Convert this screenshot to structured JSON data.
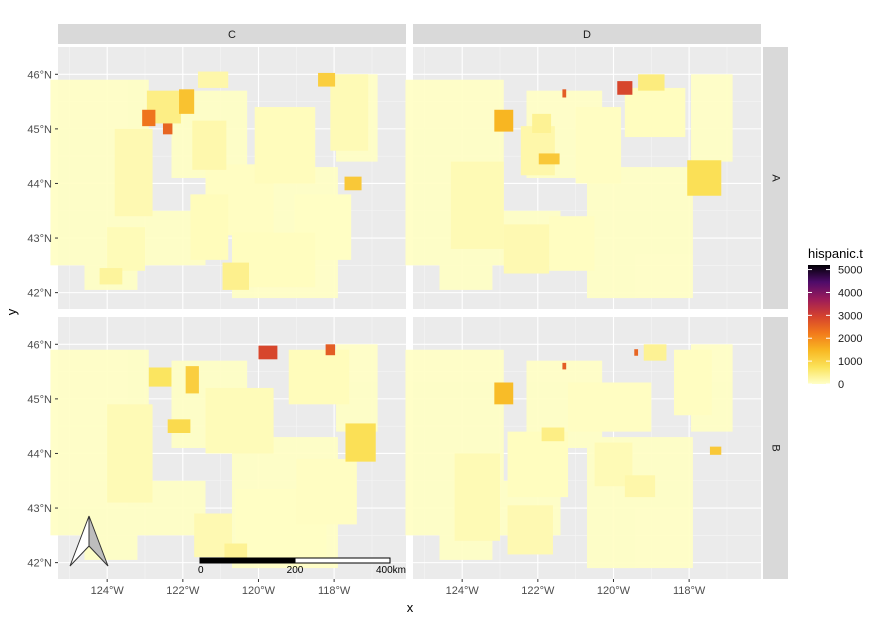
{
  "chart_data": {
    "type": "choropleth-map-facets",
    "xlabel": "x",
    "ylabel": "y",
    "facet_cols": [
      "C",
      "D"
    ],
    "facet_rows": [
      "A",
      "B"
    ],
    "xlim": [
      -125.3,
      -116.1
    ],
    "ylim": [
      41.7,
      46.5
    ],
    "x_ticks": [
      {
        "value": -124,
        "label": "124°W"
      },
      {
        "value": -122,
        "label": "122°W"
      },
      {
        "value": -120,
        "label": "120°W"
      },
      {
        "value": -118,
        "label": "118°W"
      }
    ],
    "y_ticks": [
      {
        "value": 42,
        "label": "42°N"
      },
      {
        "value": 43,
        "label": "43°N"
      },
      {
        "value": 44,
        "label": "44°N"
      },
      {
        "value": 45,
        "label": "45°N"
      },
      {
        "value": 46,
        "label": "46°N"
      }
    ],
    "legend": {
      "title": "hispanic.t",
      "placement": "right",
      "ticks": [
        0,
        1000,
        2000,
        3000,
        4000,
        5000
      ],
      "range": [
        0,
        5200
      ],
      "palette": [
        "#ffffc8",
        "#fbe35a",
        "#f8b722",
        "#f2791b",
        "#d4412e",
        "#9b1b5a",
        "#4e0b6a",
        "#000004"
      ]
    },
    "scale_bar": {
      "labels": [
        "0",
        "200",
        "400km"
      ]
    },
    "north_arrow": true,
    "panels": [
      {
        "col": "C",
        "row": "A",
        "regions": [
          {
            "lon": -120.5,
            "lat": 43.7,
            "w": 1.8,
            "h": 1.3,
            "value": 40
          },
          {
            "lon": -118.3,
            "lat": 43.2,
            "w": 1.5,
            "h": 1.2,
            "value": 30
          },
          {
            "lon": -119.6,
            "lat": 42.6,
            "w": 2.2,
            "h": 1.0,
            "value": 60
          },
          {
            "lon": -119.3,
            "lat": 44.7,
            "w": 1.6,
            "h": 1.4,
            "value": 80
          },
          {
            "lon": -117.6,
            "lat": 45.3,
            "w": 1.0,
            "h": 1.4,
            "value": 120
          },
          {
            "lon": -121.3,
            "lat": 43.2,
            "w": 1.0,
            "h": 1.2,
            "value": 90
          },
          {
            "lon": -123.3,
            "lat": 44.2,
            "w": 1.0,
            "h": 1.6,
            "value": 150
          },
          {
            "lon": -123.5,
            "lat": 42.8,
            "w": 1.0,
            "h": 0.8,
            "value": 110
          },
          {
            "lon": -121.3,
            "lat": 44.7,
            "w": 0.9,
            "h": 0.9,
            "value": 180
          },
          {
            "lon": -120.6,
            "lat": 42.3,
            "w": 0.7,
            "h": 0.5,
            "value": 400
          },
          {
            "lon": -122.5,
            "lat": 45.4,
            "w": 0.9,
            "h": 0.6,
            "value": 450
          },
          {
            "lon": -121.9,
            "lat": 45.5,
            "w": 0.4,
            "h": 0.45,
            "value": 1300
          },
          {
            "lon": -122.9,
            "lat": 45.2,
            "w": 0.35,
            "h": 0.3,
            "value": 2300
          },
          {
            "lon": -122.4,
            "lat": 45.0,
            "w": 0.25,
            "h": 0.2,
            "value": 2500
          },
          {
            "lon": -118.2,
            "lat": 45.9,
            "w": 0.45,
            "h": 0.25,
            "value": 1100
          },
          {
            "lon": -117.5,
            "lat": 44.0,
            "w": 0.45,
            "h": 0.25,
            "value": 1200
          },
          {
            "lon": -123.9,
            "lat": 42.3,
            "w": 0.6,
            "h": 0.3,
            "value": 300
          },
          {
            "lon": -121.2,
            "lat": 45.9,
            "w": 0.8,
            "h": 0.3,
            "value": 200
          }
        ]
      },
      {
        "col": "D",
        "row": "A",
        "regions": [
          {
            "lon": -121.1,
            "lat": 42.9,
            "w": 1.2,
            "h": 1.0,
            "value": 50
          },
          {
            "lon": -120.4,
            "lat": 44.7,
            "w": 1.2,
            "h": 1.4,
            "value": 40
          },
          {
            "lon": -118.9,
            "lat": 45.3,
            "w": 1.6,
            "h": 0.9,
            "value": 60
          },
          {
            "lon": -123.6,
            "lat": 43.6,
            "w": 1.4,
            "h": 1.6,
            "value": 130
          },
          {
            "lon": -122.3,
            "lat": 42.8,
            "w": 1.2,
            "h": 0.9,
            "value": 150
          },
          {
            "lon": -122.0,
            "lat": 44.6,
            "w": 0.9,
            "h": 0.9,
            "value": 200
          },
          {
            "lon": -117.6,
            "lat": 44.1,
            "w": 0.9,
            "h": 0.65,
            "value": 800
          },
          {
            "lon": -119.7,
            "lat": 45.75,
            "w": 0.4,
            "h": 0.25,
            "value": 2900
          },
          {
            "lon": -121.7,
            "lat": 44.45,
            "w": 0.55,
            "h": 0.2,
            "value": 1200
          },
          {
            "lon": -122.9,
            "lat": 45.15,
            "w": 0.5,
            "h": 0.4,
            "value": 1500
          },
          {
            "lon": -121.3,
            "lat": 45.65,
            "w": 0.1,
            "h": 0.15,
            "value": 2600
          },
          {
            "lon": -119.0,
            "lat": 45.85,
            "w": 0.7,
            "h": 0.3,
            "value": 500
          },
          {
            "lon": -121.9,
            "lat": 45.1,
            "w": 0.5,
            "h": 0.35,
            "value": 350
          }
        ]
      },
      {
        "col": "C",
        "row": "B",
        "regions": [
          {
            "lon": -119.4,
            "lat": 42.7,
            "w": 2.4,
            "h": 1.3,
            "value": 30
          },
          {
            "lon": -118.2,
            "lat": 43.3,
            "w": 1.6,
            "h": 1.2,
            "value": 40
          },
          {
            "lon": -120.5,
            "lat": 44.6,
            "w": 1.8,
            "h": 1.2,
            "value": 100
          },
          {
            "lon": -118.4,
            "lat": 45.4,
            "w": 1.6,
            "h": 1.0,
            "value": 90
          },
          {
            "lon": -123.4,
            "lat": 44.0,
            "w": 1.2,
            "h": 1.8,
            "value": 120
          },
          {
            "lon": -121.2,
            "lat": 42.5,
            "w": 1.0,
            "h": 0.8,
            "value": 150
          },
          {
            "lon": -117.3,
            "lat": 44.2,
            "w": 0.8,
            "h": 0.7,
            "value": 800
          },
          {
            "lon": -122.1,
            "lat": 44.5,
            "w": 0.6,
            "h": 0.25,
            "value": 900
          },
          {
            "lon": -121.75,
            "lat": 45.35,
            "w": 0.35,
            "h": 0.5,
            "value": 1100
          },
          {
            "lon": -119.75,
            "lat": 45.85,
            "w": 0.5,
            "h": 0.25,
            "value": 2900
          },
          {
            "lon": -118.1,
            "lat": 45.9,
            "w": 0.25,
            "h": 0.2,
            "value": 2600
          },
          {
            "lon": -122.6,
            "lat": 45.4,
            "w": 0.6,
            "h": 0.35,
            "value": 700
          },
          {
            "lon": -120.6,
            "lat": 42.2,
            "w": 0.6,
            "h": 0.3,
            "value": 350
          }
        ]
      },
      {
        "col": "D",
        "row": "B",
        "regions": [
          {
            "lon": -120.1,
            "lat": 44.85,
            "w": 2.2,
            "h": 0.9,
            "value": 40
          },
          {
            "lon": -117.9,
            "lat": 45.3,
            "w": 1.0,
            "h": 1.2,
            "value": 50
          },
          {
            "lon": -122.0,
            "lat": 43.8,
            "w": 1.6,
            "h": 1.2,
            "value": 60
          },
          {
            "lon": -123.6,
            "lat": 43.2,
            "w": 1.2,
            "h": 1.6,
            "value": 130
          },
          {
            "lon": -122.2,
            "lat": 42.6,
            "w": 1.2,
            "h": 0.9,
            "value": 150
          },
          {
            "lon": -120.0,
            "lat": 43.8,
            "w": 1.0,
            "h": 0.8,
            "value": 120
          },
          {
            "lon": -119.3,
            "lat": 43.4,
            "w": 0.8,
            "h": 0.4,
            "value": 200
          },
          {
            "lon": -121.6,
            "lat": 44.35,
            "w": 0.6,
            "h": 0.25,
            "value": 450
          },
          {
            "lon": -118.9,
            "lat": 45.85,
            "w": 0.6,
            "h": 0.3,
            "value": 350
          },
          {
            "lon": -122.9,
            "lat": 45.1,
            "w": 0.5,
            "h": 0.4,
            "value": 1400
          },
          {
            "lon": -117.3,
            "lat": 44.05,
            "w": 0.3,
            "h": 0.15,
            "value": 1200
          },
          {
            "lon": -119.4,
            "lat": 45.85,
            "w": 0.1,
            "h": 0.12,
            "value": 2500
          },
          {
            "lon": -121.3,
            "lat": 45.6,
            "w": 0.1,
            "h": 0.12,
            "value": 2600
          }
        ]
      }
    ]
  }
}
